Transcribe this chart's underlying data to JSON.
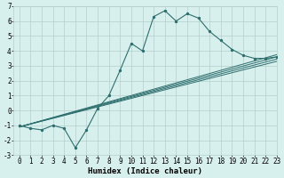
{
  "xlabel": "Humidex (Indice chaleur)",
  "ylabel": "",
  "bg_color": "#d8f0ed",
  "grid_color": "#b2d0cb",
  "line_color": "#2d6e6e",
  "xlim": [
    -0.5,
    23
  ],
  "ylim": [
    -3,
    7
  ],
  "xticks": [
    0,
    1,
    2,
    3,
    4,
    5,
    6,
    7,
    8,
    9,
    10,
    11,
    12,
    13,
    14,
    15,
    16,
    17,
    18,
    19,
    20,
    21,
    22,
    23
  ],
  "yticks": [
    -3,
    -2,
    -1,
    0,
    1,
    2,
    3,
    4,
    5,
    6,
    7
  ],
  "main_line_x": [
    0,
    1,
    2,
    3,
    4,
    5,
    6,
    7,
    8,
    9,
    10,
    11,
    12,
    13,
    14,
    15,
    16,
    17,
    18,
    19,
    20,
    21,
    22,
    23
  ],
  "main_line_y": [
    -1,
    -1.2,
    -1.3,
    -1,
    -1.2,
    -2.5,
    -1.3,
    0.15,
    1.0,
    2.7,
    4.5,
    4.0,
    6.3,
    6.7,
    6.0,
    6.5,
    6.2,
    5.3,
    4.7,
    4.1,
    3.7,
    3.5,
    3.5,
    3.6
  ],
  "trend_lines": [
    {
      "x": [
        0,
        23
      ],
      "y": [
        -1.1,
        3.3
      ]
    },
    {
      "x": [
        0,
        23
      ],
      "y": [
        -1.1,
        3.45
      ]
    },
    {
      "x": [
        0,
        23
      ],
      "y": [
        -1.1,
        3.6
      ]
    },
    {
      "x": [
        0,
        23
      ],
      "y": [
        -1.1,
        3.75
      ]
    }
  ],
  "tick_fontsize": 5.5,
  "xlabel_fontsize": 6.5,
  "xlabel_fontweight": "bold"
}
